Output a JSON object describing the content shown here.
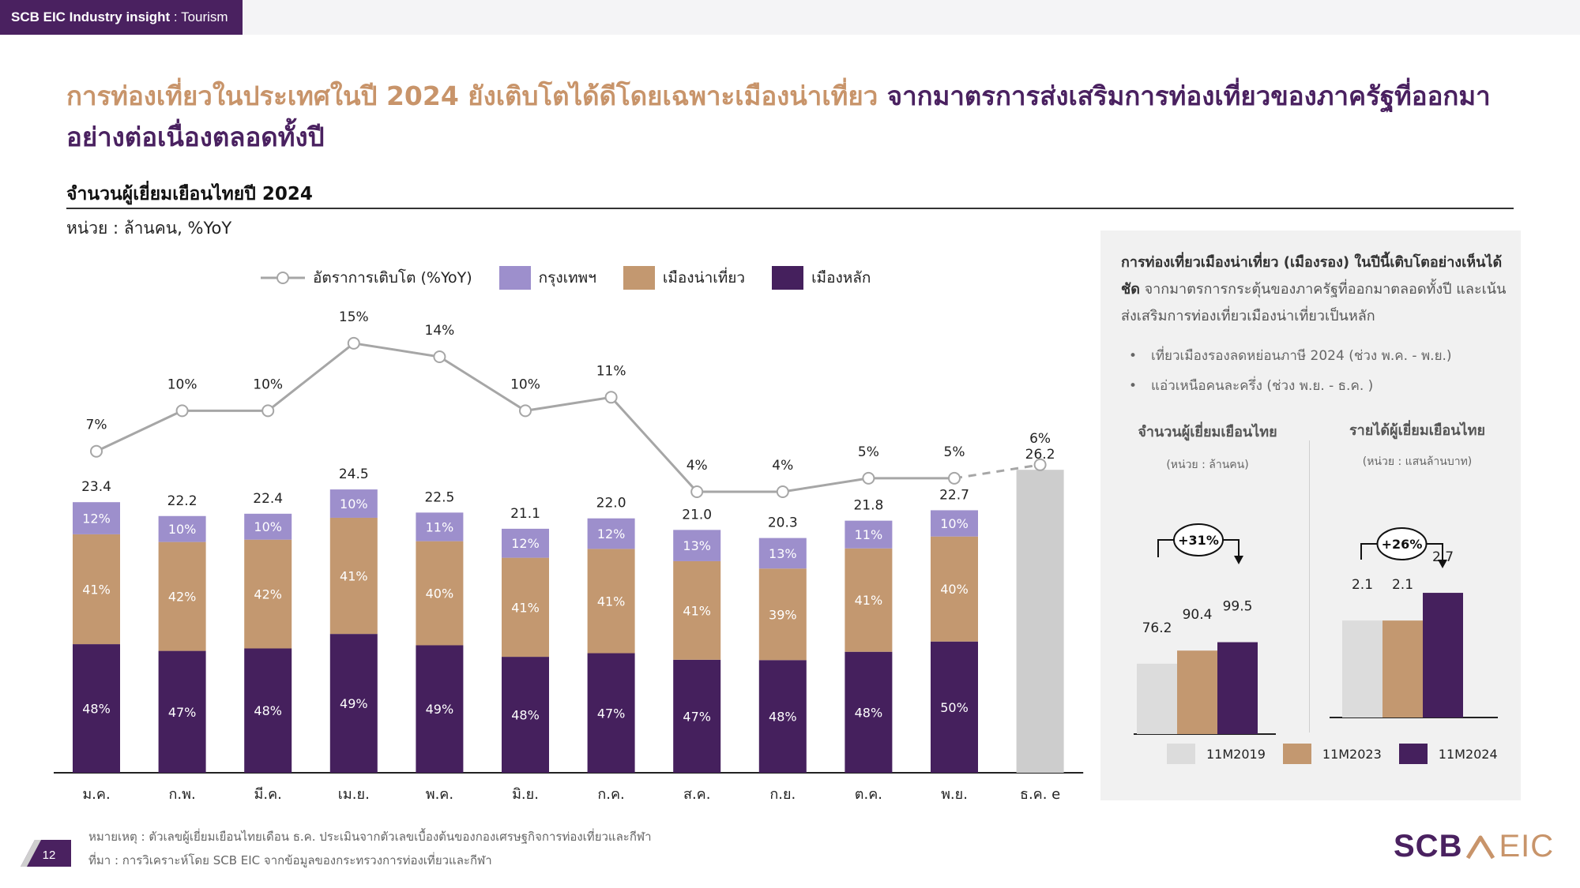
{
  "header": {
    "brand": "SCB EIC Industry insight",
    "separator": " : ",
    "section": "Tourism"
  },
  "headline": {
    "part1": "การท่องเที่ยวในประเทศในปี 2024 ยังเติบโตได้ดีโดยเฉพาะเมืองน่าเที่ยว",
    "part2": "จากมาตรการส่งเสริมการท่องเที่ยวของภาครัฐที่ออกมาอย่างต่อเนื่องตลอดทั้งปี"
  },
  "colors": {
    "bangkok": "#9d8fcc",
    "secondary": "#c39870",
    "main": "#45205d",
    "estimate": "#cdcdcd",
    "line": "#a6a6a6",
    "y2019": "#dcdcdc",
    "accent": "#c8946a"
  },
  "chart_data": {
    "type": "bar",
    "title": "จำนวนผู้เยี่ยมเยือนไทยปี 2024",
    "unit": "หน่วย : ล้านคน, %YoY",
    "stacked": true,
    "legend": [
      "อัตราการเติบโต (%YoY)",
      "กรุงเทพฯ",
      "เมืองน่าเที่ยว",
      "เมืองหลัก"
    ],
    "legend_position": "top",
    "categories": [
      "ม.ค.",
      "ก.พ.",
      "มี.ค.",
      "เม.ย.",
      "พ.ค.",
      "มิ.ย.",
      "ก.ค.",
      "ส.ค.",
      "ก.ย.",
      "ต.ค.",
      "พ.ย.",
      "ธ.ค. e"
    ],
    "totals": [
      23.4,
      22.2,
      22.4,
      24.5,
      22.5,
      21.1,
      22.0,
      21.0,
      20.3,
      21.8,
      22.7,
      26.2
    ],
    "total_labels": [
      "23.4",
      "22.2",
      "22.4",
      "24.5",
      "22.5",
      "21.1",
      "22.0",
      "21.0",
      "20.3",
      "21.8",
      "22.7",
      "26.2"
    ],
    "series": [
      {
        "name": "เมืองหลัก",
        "share_labels": [
          "48%",
          "47%",
          "48%",
          "49%",
          "49%",
          "48%",
          "47%",
          "47%",
          "48%",
          "48%",
          "50%",
          ""
        ],
        "shares": [
          48,
          47,
          48,
          49,
          49,
          48,
          47,
          47,
          48,
          48,
          50,
          null
        ]
      },
      {
        "name": "เมืองน่าเที่ยว",
        "share_labels": [
          "41%",
          "42%",
          "42%",
          "41%",
          "40%",
          "41%",
          "41%",
          "41%",
          "39%",
          "41%",
          "40%",
          ""
        ],
        "shares": [
          41,
          42,
          42,
          41,
          40,
          41,
          41,
          41,
          39,
          41,
          40,
          null
        ]
      },
      {
        "name": "กรุงเทพฯ",
        "share_labels": [
          "12%",
          "10%",
          "10%",
          "10%",
          "11%",
          "12%",
          "12%",
          "13%",
          "13%",
          "11%",
          "10%",
          ""
        ],
        "shares": [
          12,
          10,
          10,
          10,
          11,
          12,
          12,
          13,
          13,
          11,
          10,
          null
        ]
      }
    ],
    "growth": {
      "name": "อัตราการเติบโต (%YoY)",
      "values": [
        7,
        10,
        10,
        15,
        14,
        10,
        11,
        4,
        4,
        5,
        5,
        6
      ],
      "labels": [
        "7%",
        "10%",
        "10%",
        "15%",
        "14%",
        "10%",
        "11%",
        "4%",
        "4%",
        "5%",
        "5%",
        "6%"
      ],
      "estimate_from_index": 10
    },
    "ylim": [
      0,
      30
    ],
    "grid": false
  },
  "notes": {
    "remark": "หมายเหตุ : ตัวเลขผู้เยี่ยมเยือนไทยเดือน ธ.ค. ประเมินจากตัวเลขเบื้องต้นของกองเศรษฐกิจการท่องเที่ยวและกีฬา",
    "source": "ที่มา : การวิเคราะห์โดย SCB EIC จากข้อมูลของกระทรวงการท่องเที่ยวและกีฬา"
  },
  "page_number": "12",
  "logo": {
    "part1": "SCB",
    "part2": "EIC"
  },
  "panel": {
    "text_bold": "การท่องเที่ยวเมืองน่าเที่ยว (เมืองรอง) ในปีนี้เติบโตอย่างเห็นได้ชัด",
    "text_rest": " จากมาตรการกระตุ้นของภาครัฐที่ออกมาตลอดทั้งปี และเน้นส่งเสริมการท่องเที่ยวเมืองน่าเที่ยวเป็นหลัก",
    "bullets": [
      "เที่ยวเมืองรองลดหย่อนภาษี 2024 (ช่วง พ.ค. - พ.ย.)",
      "แอ่วเหนือคนละครึ่ง (ช่วง พ.ย. - ธ.ค. )"
    ],
    "legend": [
      "11M2019",
      "11M2023",
      "11M2024"
    ]
  },
  "mini_charts": [
    {
      "type": "bar",
      "title": "จำนวนผู้เยี่ยมเยือนไทย",
      "unit": "(หน่วย : ล้านคน)",
      "categories": [
        "11M2019",
        "11M2023",
        "11M2024"
      ],
      "values": [
        76.2,
        90.4,
        99.5
      ],
      "labels": [
        "76.2",
        "90.4",
        "99.5"
      ],
      "change": "+31%"
    },
    {
      "type": "bar",
      "title": "รายได้ผู้เยี่ยมเยือนไทย",
      "unit": "(หน่วย : แสนล้านบาท)",
      "categories": [
        "11M2019",
        "11M2023",
        "11M2024"
      ],
      "values": [
        2.1,
        2.1,
        2.7
      ],
      "labels": [
        "2.1",
        "2.1",
        "2.7"
      ],
      "change": "+26%"
    }
  ]
}
